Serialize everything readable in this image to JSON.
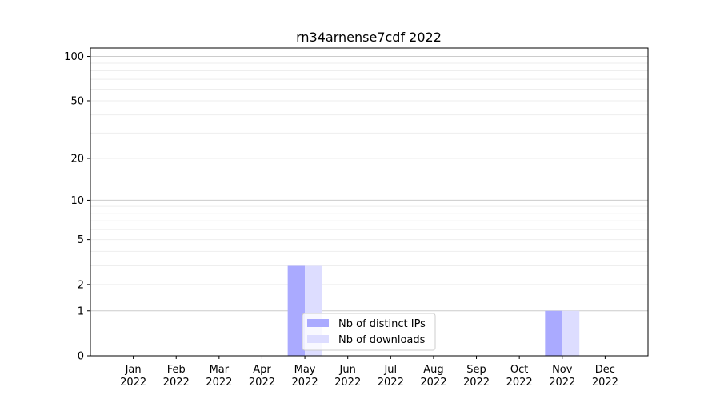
{
  "chart_data": {
    "type": "bar",
    "title": "rn34arnense7cdf 2022",
    "xlabel": "",
    "ylabel": "",
    "y_scale": "log(1+x)",
    "ylim": [
      0,
      114
    ],
    "y_ticks": [
      0,
      1,
      2,
      5,
      10,
      20,
      50,
      100
    ],
    "grid": true,
    "legend_position": "lower-center",
    "categories": [
      "Jan\n2022",
      "Feb\n2022",
      "Mar\n2022",
      "Apr\n2022",
      "May\n2022",
      "Jun\n2022",
      "Jul\n2022",
      "Aug\n2022",
      "Sep\n2022",
      "Oct\n2022",
      "Nov\n2022",
      "Dec\n2022"
    ],
    "series": [
      {
        "name": "Nb of distinct IPs",
        "color": "#aaaaff",
        "values": [
          0,
          0,
          0,
          0,
          3,
          0,
          0,
          0,
          0,
          0,
          1,
          0
        ]
      },
      {
        "name": "Nb of downloads",
        "color": "#ddddff",
        "values": [
          0,
          0,
          0,
          0,
          3,
          0,
          0,
          0,
          0,
          0,
          1,
          0
        ]
      }
    ]
  }
}
